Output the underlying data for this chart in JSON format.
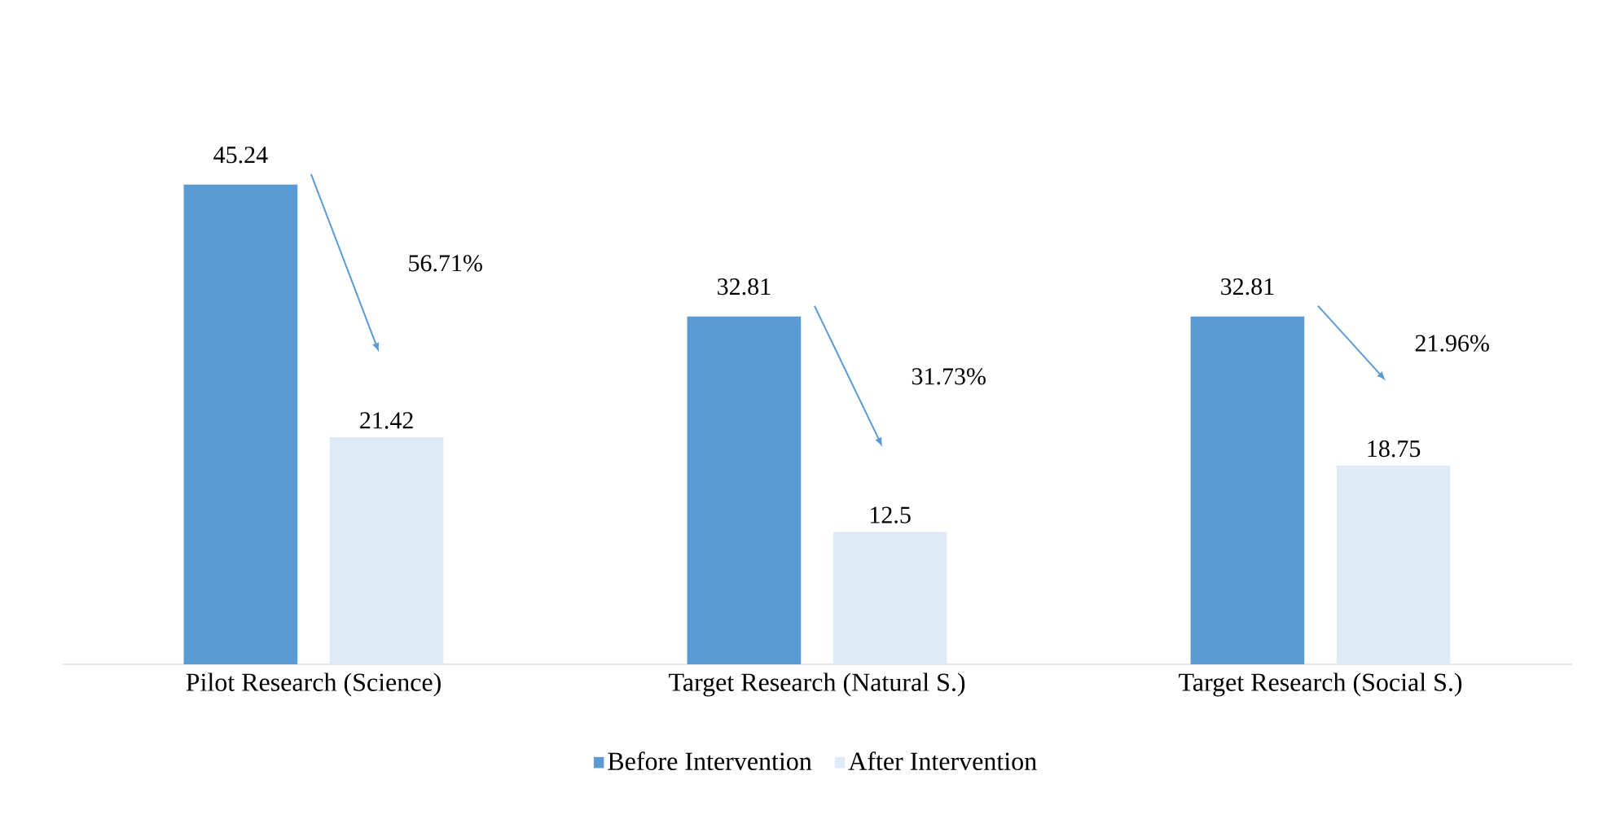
{
  "chart_data": {
    "type": "bar",
    "categories": [
      "Pilot Research (Science)",
      "Target Research (Natural S.)",
      "Target Research (Social S.)"
    ],
    "series": [
      {
        "name": "Before Intervention",
        "color": "#5b9bd5",
        "values": [
          45.24,
          32.81,
          32.81
        ]
      },
      {
        "name": "After Intervention",
        "color": "#deebf7",
        "values": [
          21.42,
          12.5,
          18.75
        ]
      }
    ],
    "data_labels": true,
    "annotations": [
      "56.71%",
      "31.73%",
      "21.96%"
    ],
    "legend": "bottom",
    "grid": false
  }
}
